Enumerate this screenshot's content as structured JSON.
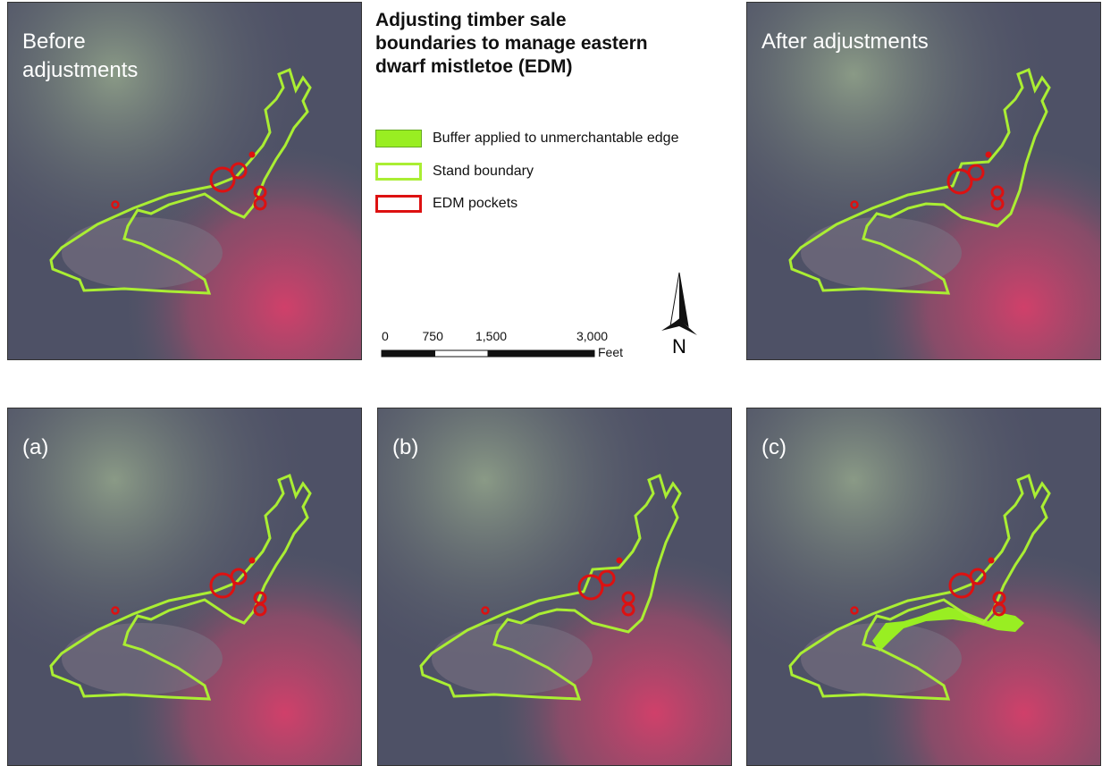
{
  "panels": [
    {
      "label": "Before adjustments"
    },
    {
      "label": "After adjustments"
    },
    {
      "label": "(a)"
    },
    {
      "label": "(b)"
    },
    {
      "label": "(c)"
    }
  ],
  "title": "Adjusting timber sale boundaries to manage eastern dwarf mistletoe (EDM)",
  "legend": [
    {
      "label": "Buffer applied to unmerchantable edge",
      "color": "#99ee22"
    },
    {
      "label": "Stand boundary",
      "color": "#aaee33"
    },
    {
      "label": "EDM pockets",
      "color": "#dd1111"
    }
  ],
  "scale_bar": {
    "ticks": [
      0,
      750,
      {
        "value": 1500,
        "label": "1,500"
      },
      {
        "value": 3000,
        "label": "3,000"
      }
    ],
    "unit": "Feet"
  },
  "north_arrow": "N"
}
